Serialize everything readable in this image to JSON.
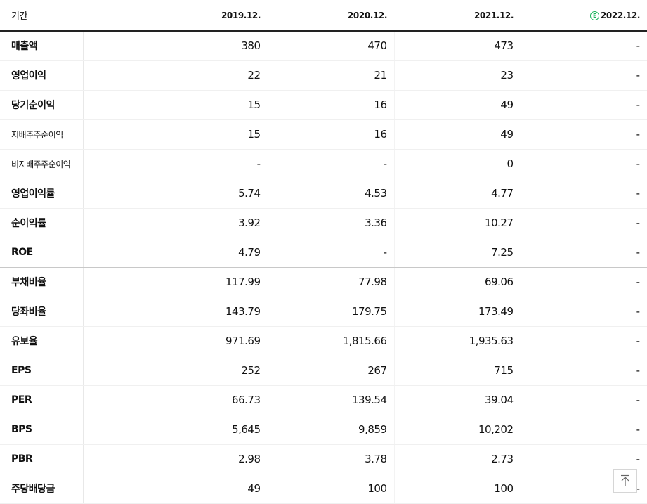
{
  "header": {
    "period_label": "기간",
    "periods": [
      "2019.12.",
      "2020.12.",
      "2021.12.",
      "2022.12."
    ],
    "estimate_marker": "E"
  },
  "rows": [
    {
      "label": "매출액",
      "values": [
        "380",
        "470",
        "473",
        "-"
      ]
    },
    {
      "label": "영업이익",
      "values": [
        "22",
        "21",
        "23",
        "-"
      ]
    },
    {
      "label": "당기순이익",
      "values": [
        "15",
        "16",
        "49",
        "-"
      ]
    },
    {
      "label": "지배주주순이익",
      "values": [
        "15",
        "16",
        "49",
        "-"
      ]
    },
    {
      "label": "비지배주주순이익",
      "values": [
        "-",
        "-",
        "0",
        "-"
      ]
    },
    {
      "label": "영업이익률",
      "values": [
        "5.74",
        "4.53",
        "4.77",
        "-"
      ]
    },
    {
      "label": "순이익률",
      "values": [
        "3.92",
        "3.36",
        "10.27",
        "-"
      ]
    },
    {
      "label": "ROE",
      "values": [
        "4.79",
        "-",
        "7.25",
        "-"
      ]
    },
    {
      "label": "부채비율",
      "values": [
        "117.99",
        "77.98",
        "69.06",
        "-"
      ]
    },
    {
      "label": "당좌비율",
      "values": [
        "143.79",
        "179.75",
        "173.49",
        "-"
      ]
    },
    {
      "label": "유보율",
      "values": [
        "971.69",
        "1,815.66",
        "1,935.63",
        "-"
      ]
    },
    {
      "label": "EPS",
      "values": [
        "252",
        "267",
        "715",
        "-"
      ]
    },
    {
      "label": "PER",
      "values": [
        "66.73",
        "139.54",
        "39.04",
        "-"
      ]
    },
    {
      "label": "BPS",
      "values": [
        "5,645",
        "9,859",
        "10,202",
        "-"
      ]
    },
    {
      "label": "PBR",
      "values": [
        "2.98",
        "3.78",
        "2.73",
        "-"
      ]
    },
    {
      "label": "주당배당금",
      "values": [
        "49",
        "100",
        "100",
        "-"
      ]
    }
  ],
  "colors": {
    "estimate_accent": "#18b45a"
  },
  "scroll_top_icon": "arrow-up-to-line-icon"
}
